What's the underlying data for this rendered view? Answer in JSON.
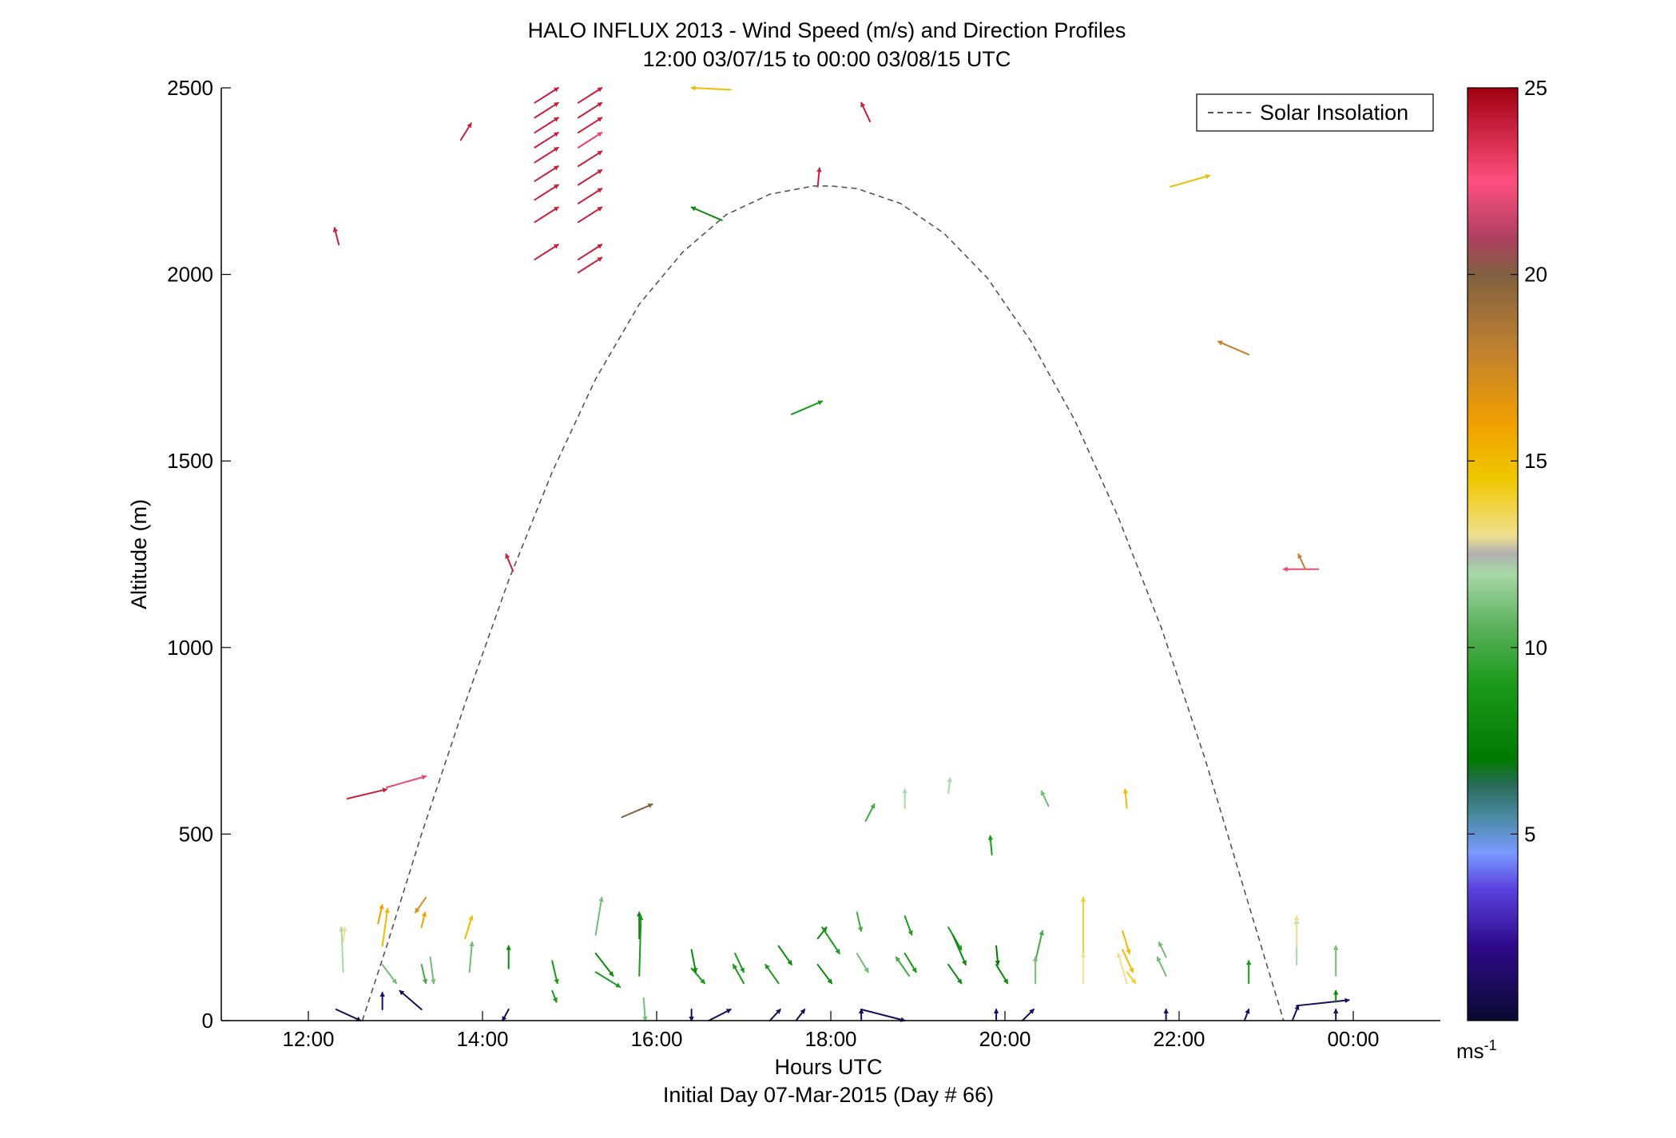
{
  "chart_data": {
    "type": "quiver",
    "title": "HALO INFLUX 2013 - Wind Speed (m/s) and Direction Profiles",
    "subtitle": "12:00 03/07/15 to 00:00 03/08/15  UTC",
    "xlabel": "Hours UTC",
    "xlabel2": "Initial Day 07-Mar-2015 (Day # 66)",
    "ylabel": "Altitude (m)",
    "xlim": [
      11,
      25
    ],
    "ylim": [
      0,
      2500
    ],
    "x_ticks": [
      {
        "value": 12,
        "label": "12:00"
      },
      {
        "value": 14,
        "label": "14:00"
      },
      {
        "value": 16,
        "label": "16:00"
      },
      {
        "value": 18,
        "label": "18:00"
      },
      {
        "value": 20,
        "label": "20:00"
      },
      {
        "value": 22,
        "label": "22:00"
      },
      {
        "value": 24,
        "label": "00:00"
      }
    ],
    "y_ticks": [
      {
        "value": 0,
        "label": "0"
      },
      {
        "value": 500,
        "label": "500"
      },
      {
        "value": 1000,
        "label": "1000"
      },
      {
        "value": 1500,
        "label": "1500"
      },
      {
        "value": 2000,
        "label": "2000"
      },
      {
        "value": 2500,
        "label": "2500"
      }
    ],
    "grid": false,
    "legend": {
      "position": "top-right",
      "entries": [
        "Solar Insolation"
      ]
    },
    "colorbar": {
      "min": 0,
      "max": 25,
      "ticks": [
        {
          "value": 5,
          "label": "5"
        },
        {
          "value": 10,
          "label": "10"
        },
        {
          "value": 15,
          "label": "15"
        },
        {
          "value": 20,
          "label": "20"
        },
        {
          "value": 25,
          "label": "25"
        }
      ],
      "unit_label": "ms",
      "unit_exponent": "-1",
      "stops": [
        {
          "v": 0,
          "c": "#0a0a30"
        },
        {
          "v": 2,
          "c": "#2e0a8a"
        },
        {
          "v": 3.5,
          "c": "#5a40e0"
        },
        {
          "v": 4.5,
          "c": "#7a9aff"
        },
        {
          "v": 5.5,
          "c": "#4a8aa0"
        },
        {
          "v": 6.3,
          "c": "#2a6a5a"
        },
        {
          "v": 7,
          "c": "#007a00"
        },
        {
          "v": 9,
          "c": "#1a9a1a"
        },
        {
          "v": 10.5,
          "c": "#5ab05a"
        },
        {
          "v": 12,
          "c": "#a8d8a8"
        },
        {
          "v": 12.5,
          "c": "#b0b0b0"
        },
        {
          "v": 13,
          "c": "#f0e090"
        },
        {
          "v": 14.5,
          "c": "#f0c800"
        },
        {
          "v": 16,
          "c": "#f0a000"
        },
        {
          "v": 18,
          "c": "#c08030"
        },
        {
          "v": 20,
          "c": "#806040"
        },
        {
          "v": 21,
          "c": "#b04060"
        },
        {
          "v": 22.5,
          "c": "#ff5080"
        },
        {
          "v": 25,
          "c": "#a00010"
        }
      ]
    },
    "solar_insolation_curve": {
      "style": "dashed",
      "color": "#555555",
      "points": [
        [
          12.62,
          0
        ],
        [
          12.9,
          200
        ],
        [
          13.3,
          500
        ],
        [
          13.8,
          850
        ],
        [
          14.3,
          1180
        ],
        [
          14.8,
          1470
        ],
        [
          15.3,
          1720
        ],
        [
          15.8,
          1920
        ],
        [
          16.3,
          2060
        ],
        [
          16.8,
          2160
        ],
        [
          17.3,
          2215
        ],
        [
          17.8,
          2237
        ],
        [
          18.0,
          2237
        ],
        [
          18.3,
          2230
        ],
        [
          18.8,
          2190
        ],
        [
          19.3,
          2110
        ],
        [
          19.8,
          1990
        ],
        [
          20.3,
          1820
        ],
        [
          20.8,
          1610
        ],
        [
          21.3,
          1350
        ],
        [
          21.8,
          1050
        ],
        [
          22.3,
          700
        ],
        [
          22.8,
          310
        ],
        [
          23.2,
          0
        ]
      ]
    },
    "wind_vectors": [
      {
        "x": 12.32,
        "y": 30,
        "dx": 0.28,
        "dy": -30,
        "s": 1
      },
      {
        "x": 12.4,
        "y": 130,
        "dx": -0.02,
        "dy": 120,
        "s": 12
      },
      {
        "x": 12.4,
        "y": 210,
        "dx": 0.02,
        "dy": 40,
        "s": 13
      },
      {
        "x": 12.85,
        "y": 200,
        "dx": 0.06,
        "dy": 100,
        "s": 15
      },
      {
        "x": 12.85,
        "y": 150,
        "dx": 0.16,
        "dy": -50,
        "s": 11
      },
      {
        "x": 12.8,
        "y": 260,
        "dx": 0.05,
        "dy": 50,
        "s": 16
      },
      {
        "x": 12.85,
        "y": 30,
        "dx": 0.0,
        "dy": 45,
        "s": 1
      },
      {
        "x": 13.3,
        "y": 30,
        "dx": -0.25,
        "dy": 50,
        "s": 1
      },
      {
        "x": 13.3,
        "y": 150,
        "dx": 0.05,
        "dy": -50,
        "s": 10
      },
      {
        "x": 13.3,
        "y": 250,
        "dx": 0.04,
        "dy": 40,
        "s": 16
      },
      {
        "x": 13.35,
        "y": 330,
        "dx": -0.12,
        "dy": -40,
        "s": 17
      },
      {
        "x": 13.4,
        "y": 170,
        "dx": 0.04,
        "dy": -70,
        "s": 11
      },
      {
        "x": 13.8,
        "y": 220,
        "dx": 0.08,
        "dy": 60,
        "s": 15
      },
      {
        "x": 13.85,
        "y": 130,
        "dx": 0.03,
        "dy": 80,
        "s": 11
      },
      {
        "x": 14.3,
        "y": 140,
        "dx": 0.0,
        "dy": 60,
        "s": 8
      },
      {
        "x": 14.3,
        "y": 30,
        "dx": -0.07,
        "dy": -30,
        "s": 1
      },
      {
        "x": 14.8,
        "y": 160,
        "dx": 0.06,
        "dy": -60,
        "s": 9
      },
      {
        "x": 14.8,
        "y": 80,
        "dx": 0.05,
        "dy": -30,
        "s": 9
      },
      {
        "x": 15.3,
        "y": 230,
        "dx": 0.07,
        "dy": 100,
        "s": 11
      },
      {
        "x": 15.3,
        "y": 130,
        "dx": 0.28,
        "dy": -40,
        "s": 9
      },
      {
        "x": 15.3,
        "y": 180,
        "dx": 0.2,
        "dy": -60,
        "s": 8
      },
      {
        "x": 15.8,
        "y": 120,
        "dx": 0.02,
        "dy": 160,
        "s": 9
      },
      {
        "x": 15.8,
        "y": 220,
        "dx": 0.0,
        "dy": 70,
        "s": 8
      },
      {
        "x": 15.85,
        "y": 60,
        "dx": 0.02,
        "dy": -60,
        "s": 11
      },
      {
        "x": 16.4,
        "y": 190,
        "dx": 0.05,
        "dy": -60,
        "s": 8
      },
      {
        "x": 16.4,
        "y": 140,
        "dx": 0.15,
        "dy": -40,
        "s": 9
      },
      {
        "x": 16.4,
        "y": 30,
        "dx": 0.0,
        "dy": -30,
        "s": 1
      },
      {
        "x": 16.6,
        "y": 0,
        "dx": 0.25,
        "dy": 30,
        "s": 1
      },
      {
        "x": 16.9,
        "y": 180,
        "dx": 0.1,
        "dy": -50,
        "s": 9
      },
      {
        "x": 17.0,
        "y": 100,
        "dx": -0.12,
        "dy": 50,
        "s": 9
      },
      {
        "x": 17.3,
        "y": 0,
        "dx": 0.12,
        "dy": 30,
        "s": 1
      },
      {
        "x": 17.4,
        "y": 200,
        "dx": 0.15,
        "dy": -50,
        "s": 8
      },
      {
        "x": 17.4,
        "y": 100,
        "dx": -0.15,
        "dy": 50,
        "s": 9
      },
      {
        "x": 17.6,
        "y": 0,
        "dx": 0.1,
        "dy": 30,
        "s": 1
      },
      {
        "x": 17.85,
        "y": 220,
        "dx": 0.1,
        "dy": 30,
        "s": 8
      },
      {
        "x": 17.85,
        "y": 150,
        "dx": 0.16,
        "dy": -50,
        "s": 8
      },
      {
        "x": 17.9,
        "y": 250,
        "dx": 0.2,
        "dy": -70,
        "s": 9
      },
      {
        "x": 18.3,
        "y": 290,
        "dx": 0.05,
        "dy": -50,
        "s": 10
      },
      {
        "x": 18.3,
        "y": 180,
        "dx": 0.13,
        "dy": -50,
        "s": 11
      },
      {
        "x": 18.35,
        "y": 30,
        "dx": 0.5,
        "dy": -30,
        "s": 1
      },
      {
        "x": 18.35,
        "y": 0,
        "dx": 0.0,
        "dy": 30,
        "s": 1
      },
      {
        "x": 18.85,
        "y": 280,
        "dx": 0.08,
        "dy": -50,
        "s": 9
      },
      {
        "x": 18.85,
        "y": 180,
        "dx": 0.13,
        "dy": -50,
        "s": 9
      },
      {
        "x": 18.9,
        "y": 120,
        "dx": -0.15,
        "dy": 50,
        "s": 10
      },
      {
        "x": 19.35,
        "y": 250,
        "dx": 0.15,
        "dy": -60,
        "s": 9
      },
      {
        "x": 19.35,
        "y": 150,
        "dx": 0.15,
        "dy": -50,
        "s": 8
      },
      {
        "x": 19.4,
        "y": 230,
        "dx": 0.15,
        "dy": -80,
        "s": 8
      },
      {
        "x": 19.9,
        "y": 200,
        "dx": 0.02,
        "dy": -50,
        "s": 7
      },
      {
        "x": 19.9,
        "y": 150,
        "dx": 0.13,
        "dy": -50,
        "s": 8
      },
      {
        "x": 19.9,
        "y": 0,
        "dx": 0.0,
        "dy": 30,
        "s": 1
      },
      {
        "x": 20.2,
        "y": 0,
        "dx": 0.13,
        "dy": 30,
        "s": 1
      },
      {
        "x": 20.35,
        "y": 160,
        "dx": 0.08,
        "dy": 80,
        "s": 10
      },
      {
        "x": 20.35,
        "y": 100,
        "dx": 0.0,
        "dy": 70,
        "s": 11
      },
      {
        "x": 20.9,
        "y": 180,
        "dx": 0.0,
        "dy": 150,
        "s": 14
      },
      {
        "x": 20.9,
        "y": 100,
        "dx": 0.0,
        "dy": 80,
        "s": 13
      },
      {
        "x": 21.35,
        "y": 240,
        "dx": 0.08,
        "dy": -60,
        "s": 15
      },
      {
        "x": 21.35,
        "y": 190,
        "dx": 0.12,
        "dy": -60,
        "s": 15
      },
      {
        "x": 21.4,
        "y": 130,
        "dx": 0.1,
        "dy": -30,
        "s": 14
      },
      {
        "x": 21.4,
        "y": 100,
        "dx": -0.1,
        "dy": 80,
        "s": 13
      },
      {
        "x": 21.85,
        "y": 120,
        "dx": -0.1,
        "dy": 50,
        "s": 11
      },
      {
        "x": 21.85,
        "y": 170,
        "dx": -0.08,
        "dy": 40,
        "s": 11
      },
      {
        "x": 21.85,
        "y": 0,
        "dx": 0.0,
        "dy": 30,
        "s": 1
      },
      {
        "x": 22.8,
        "y": 100,
        "dx": 0.0,
        "dy": 60,
        "s": 9
      },
      {
        "x": 22.75,
        "y": 0,
        "dx": 0.05,
        "dy": 30,
        "s": 1
      },
      {
        "x": 23.35,
        "y": 150,
        "dx": 0.0,
        "dy": 120,
        "s": 12
      },
      {
        "x": 23.35,
        "y": 200,
        "dx": 0.0,
        "dy": 80,
        "s": 13
      },
      {
        "x": 23.3,
        "y": 0,
        "dx": 0.07,
        "dy": 40,
        "s": 1
      },
      {
        "x": 23.35,
        "y": 40,
        "dx": 0.6,
        "dy": 15,
        "s": 1
      },
      {
        "x": 23.8,
        "y": 120,
        "dx": 0.0,
        "dy": 80,
        "s": 11
      },
      {
        "x": 23.8,
        "y": 50,
        "dx": 0.0,
        "dy": 30,
        "s": 8
      },
      {
        "x": 23.8,
        "y": 0,
        "dx": 0.0,
        "dy": 30,
        "s": 1
      },
      {
        "x": 12.45,
        "y": 595,
        "dx": 0.45,
        "dy": 25,
        "s": 24
      },
      {
        "x": 12.9,
        "y": 625,
        "dx": 0.45,
        "dy": 30,
        "s": 22
      },
      {
        "x": 13.85,
        "y": 580,
        "dx": 0.0,
        "dy": 0,
        "s": 0
      },
      {
        "x": 15.6,
        "y": 545,
        "dx": 0.35,
        "dy": 35,
        "s": 20
      },
      {
        "x": 18.4,
        "y": 535,
        "dx": 0.1,
        "dy": 45,
        "s": 10
      },
      {
        "x": 18.85,
        "y": 570,
        "dx": 0.0,
        "dy": 50,
        "s": 12
      },
      {
        "x": 19.35,
        "y": 610,
        "dx": 0.02,
        "dy": 40,
        "s": 12
      },
      {
        "x": 20.5,
        "y": 575,
        "dx": -0.08,
        "dy": 40,
        "s": 11
      },
      {
        "x": 19.85,
        "y": 445,
        "dx": -0.02,
        "dy": 50,
        "s": 9
      },
      {
        "x": 21.4,
        "y": 570,
        "dx": -0.02,
        "dy": 50,
        "s": 15
      },
      {
        "x": 14.35,
        "y": 1205,
        "dx": -0.08,
        "dy": 45,
        "s": 24
      },
      {
        "x": 17.55,
        "y": 1625,
        "dx": 0.35,
        "dy": 35,
        "s": 9
      },
      {
        "x": 12.35,
        "y": 2080,
        "dx": -0.05,
        "dy": 45,
        "s": 24
      },
      {
        "x": 13.75,
        "y": 2360,
        "dx": 0.12,
        "dy": 45,
        "s": 24
      },
      {
        "x": 14.6,
        "y": 2040,
        "dx": 0.27,
        "dy": 40,
        "s": 24
      },
      {
        "x": 14.6,
        "y": 2140,
        "dx": 0.27,
        "dy": 40,
        "s": 24
      },
      {
        "x": 14.6,
        "y": 2200,
        "dx": 0.27,
        "dy": 40,
        "s": 24
      },
      {
        "x": 14.6,
        "y": 2250,
        "dx": 0.27,
        "dy": 40,
        "s": 24
      },
      {
        "x": 14.6,
        "y": 2300,
        "dx": 0.27,
        "dy": 40,
        "s": 24
      },
      {
        "x": 14.6,
        "y": 2340,
        "dx": 0.27,
        "dy": 40,
        "s": 24
      },
      {
        "x": 14.6,
        "y": 2380,
        "dx": 0.27,
        "dy": 40,
        "s": 24
      },
      {
        "x": 14.6,
        "y": 2420,
        "dx": 0.27,
        "dy": 40,
        "s": 24
      },
      {
        "x": 14.6,
        "y": 2460,
        "dx": 0.27,
        "dy": 40,
        "s": 24
      },
      {
        "x": 15.1,
        "y": 2005,
        "dx": 0.27,
        "dy": 40,
        "s": 24
      },
      {
        "x": 15.1,
        "y": 2040,
        "dx": 0.27,
        "dy": 40,
        "s": 24
      },
      {
        "x": 15.1,
        "y": 2140,
        "dx": 0.27,
        "dy": 40,
        "s": 24
      },
      {
        "x": 15.1,
        "y": 2190,
        "dx": 0.27,
        "dy": 40,
        "s": 24
      },
      {
        "x": 15.1,
        "y": 2240,
        "dx": 0.27,
        "dy": 40,
        "s": 24
      },
      {
        "x": 15.1,
        "y": 2290,
        "dx": 0.27,
        "dy": 40,
        "s": 24
      },
      {
        "x": 15.1,
        "y": 2340,
        "dx": 0.27,
        "dy": 40,
        "s": 23
      },
      {
        "x": 15.1,
        "y": 2380,
        "dx": 0.27,
        "dy": 40,
        "s": 24
      },
      {
        "x": 15.1,
        "y": 2420,
        "dx": 0.27,
        "dy": 40,
        "s": 24
      },
      {
        "x": 15.1,
        "y": 2460,
        "dx": 0.27,
        "dy": 40,
        "s": 24
      },
      {
        "x": 16.75,
        "y": 2145,
        "dx": -0.35,
        "dy": 35,
        "s": 8
      },
      {
        "x": 16.85,
        "y": 2495,
        "dx": -0.45,
        "dy": 5,
        "s": 15
      },
      {
        "x": 17.85,
        "y": 2235,
        "dx": 0.02,
        "dy": 50,
        "s": 24
      },
      {
        "x": 18.45,
        "y": 2410,
        "dx": -0.1,
        "dy": 50,
        "s": 24
      },
      {
        "x": 21.9,
        "y": 2235,
        "dx": 0.45,
        "dy": 30,
        "s": 15
      },
      {
        "x": 22.8,
        "y": 1785,
        "dx": -0.35,
        "dy": 35,
        "s": 18
      },
      {
        "x": 23.6,
        "y": 1210,
        "dx": -0.4,
        "dy": 0,
        "s": 22
      },
      {
        "x": 23.45,
        "y": 1210,
        "dx": -0.08,
        "dy": 40,
        "s": 18
      }
    ]
  }
}
